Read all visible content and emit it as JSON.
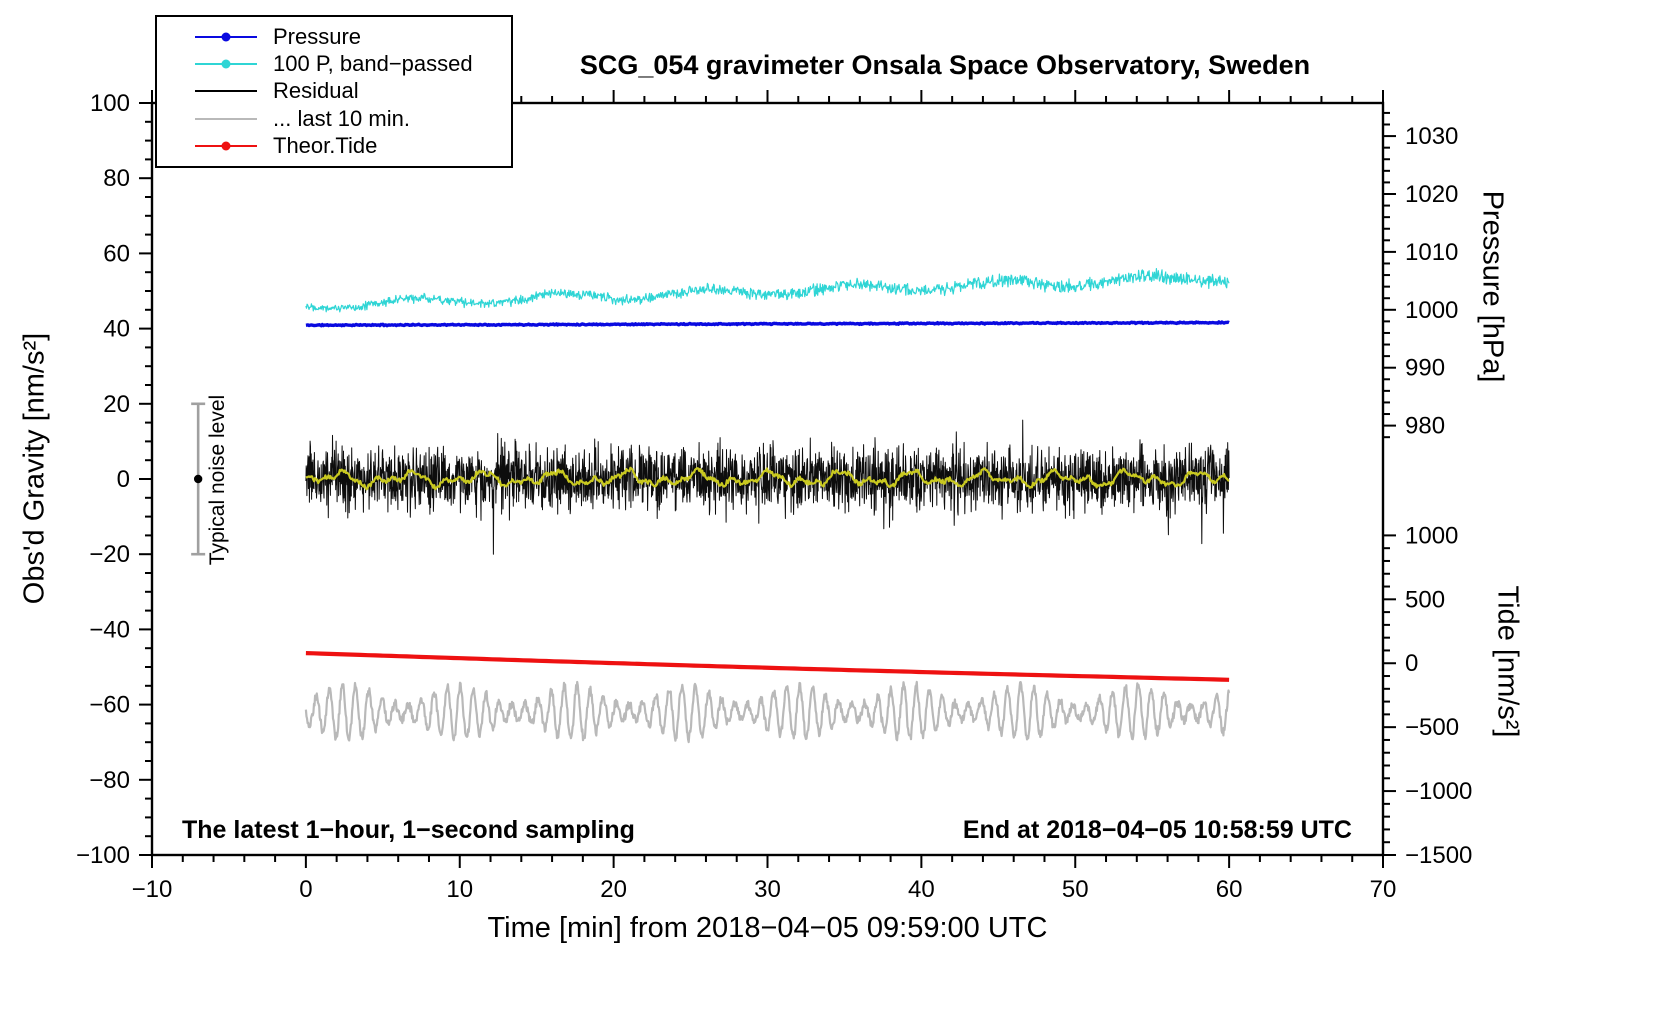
{
  "chart_data": {
    "type": "line",
    "title": "SCG_054 gravimeter Onsala Space Observatory, Sweden",
    "xlabel": "Time [min] from 2018−04−05 09:59:00 UTC",
    "ylabel_left": "Obs'd Gravity [nm/s²]",
    "ylabel_pressure": "Pressure [hPa]",
    "ylabel_tide": "Tide [nm/s²]",
    "annotation_left": "The latest 1−hour, 1−second sampling",
    "annotation_right": "End at 2018−04−05 10:58:59 UTC",
    "xaxis": {
      "min": -10,
      "max": 70,
      "ticks": [
        -10,
        0,
        10,
        20,
        30,
        40,
        50,
        60,
        70
      ],
      "minor_step": 2
    },
    "yaxis_left": {
      "min": -100,
      "max": 100,
      "ticks": [
        -100,
        -80,
        -60,
        -40,
        -20,
        0,
        20,
        40,
        60,
        80,
        100
      ],
      "minor_step": 5
    },
    "yaxis_pressure": {
      "ticks": [
        1030,
        1020,
        1010,
        1000,
        990,
        980
      ],
      "g_at_1000": 45,
      "g_per_unit": 1.54,
      "minor_step": 2,
      "minor_range": [
        978,
        1034
      ]
    },
    "yaxis_tide": {
      "ticks": [
        1000,
        500,
        0,
        -500,
        -1000,
        -1500
      ],
      "g_at_0": -49,
      "g_per_unit": 0.034,
      "minor_step": 100,
      "minor_range": [
        -1500,
        1050
      ]
    },
    "noise_marker": {
      "t": -7,
      "g_center": 0,
      "g_span": 20,
      "label": "Typical noise level",
      "bar_color": "#a0a0a0",
      "dot_color": "#000000"
    },
    "legend": [
      {
        "id": "pressure",
        "label": "Pressure",
        "color": "#0a0ae0",
        "marker": true
      },
      {
        "id": "band_passed",
        "label": "100 P, band−passed",
        "color": "#2fd5d5",
        "marker": true
      },
      {
        "id": "residual",
        "label": "Residual",
        "color": "#000000",
        "marker": false
      },
      {
        "id": "last10",
        "label": "... last 10 min.",
        "color": "#b9b9b9",
        "marker": false
      },
      {
        "id": "theor_tide",
        "label": "Theor.Tide",
        "color": "#ee1111",
        "marker": true
      }
    ],
    "series": [
      {
        "id": "residual",
        "color": "#0d0d0d",
        "width": 1,
        "kind": "spiky",
        "t0": 0,
        "t1": 60,
        "n": 2600,
        "sigma": 4.3,
        "spike_prob": 0.009,
        "spike_scale": 2.2,
        "max": 20,
        "seed": 33
      },
      {
        "id": "residual_smooth",
        "color": "#c9c920",
        "width": 2.2,
        "kind": "waves",
        "t0": 0,
        "t1": 60,
        "n": 900,
        "center": 0,
        "components": [
          [
            1.2,
            4.7
          ],
          [
            0.9,
            2.3
          ],
          [
            0.6,
            1.1
          ]
        ],
        "noise": 0.55,
        "seed": 44
      },
      {
        "id": "last10",
        "color": "#b9b9b9",
        "width": 2.2,
        "kind": "osc",
        "t0": 0,
        "t1": 60,
        "n": 1600,
        "center": -62,
        "period": 0.85,
        "amp": 4.6,
        "amp_mod": 2.6,
        "amp_mod_period": 7.3,
        "noise": 1.1,
        "seed": 55
      },
      {
        "id": "theor_tide",
        "color": "#ee1111",
        "width": 4.2,
        "kind": "curve",
        "t0": 0,
        "t1": 60,
        "n": 120,
        "start": -46.3,
        "end": -53.4,
        "bow": -0.35,
        "seed": 66
      },
      {
        "id": "pressure",
        "color": "#0a0ae0",
        "width": 3.4,
        "kind": "trend_noise",
        "t0": 0,
        "t1": 60,
        "n": 900,
        "start": 40.9,
        "end": 41.6,
        "noise": 0.2,
        "seed": 11
      },
      {
        "id": "band_passed",
        "color": "#2fd5d5",
        "width": 1.2,
        "kind": "trend_noise",
        "t0": 0,
        "t1": 60,
        "n": 1500,
        "start": 46.2,
        "end": 53.6,
        "noise": 1.3,
        "noise_end": 2.3,
        "wobble": 1.0,
        "wobble_period": 9.5,
        "seed": 22
      }
    ]
  }
}
